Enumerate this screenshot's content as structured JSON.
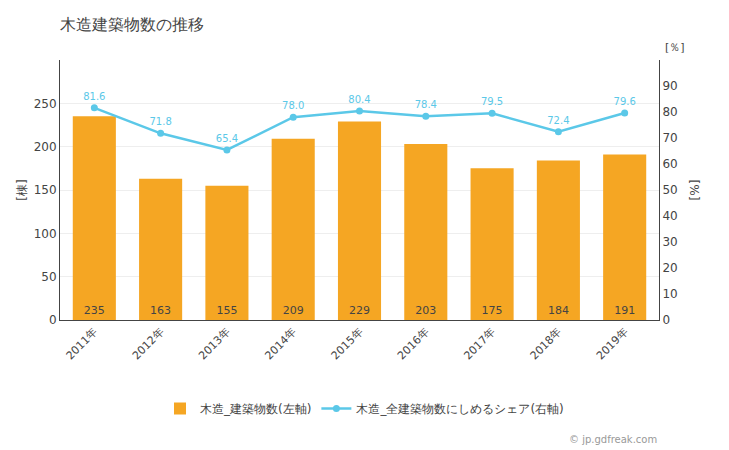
{
  "chart_data": {
    "type": "bar",
    "title": "木造建築物数の推移",
    "categories": [
      "2011年",
      "2012年",
      "2013年",
      "2014年",
      "2015年",
      "2016年",
      "2017年",
      "2018年",
      "2019年"
    ],
    "series": [
      {
        "name": "木造_建築物数(左軸)",
        "type": "bar",
        "color": "#f5a623",
        "values": [
          235,
          163,
          155,
          209,
          229,
          203,
          175,
          184,
          191
        ]
      },
      {
        "name": "木造_全建築物数にしめるシェア(右軸)",
        "type": "line",
        "axis": "y2",
        "color": "#5bc8e8",
        "marker": "circle",
        "values": [
          81.6,
          71.8,
          65.4,
          78.0,
          80.4,
          78.4,
          79.5,
          72.4,
          79.6
        ],
        "value_labels": [
          "81.6",
          "71.8",
          "65.4",
          "78.0",
          "80.4",
          "78.4",
          "79.5",
          "72.4",
          "79.6"
        ]
      }
    ],
    "ylabel": "[棟]",
    "y2label": "[%]",
    "annotations": [
      "[％]",
      "© jp.gdfreak.com"
    ],
    "ylim": [
      0,
      300
    ],
    "yticks": [
      0,
      50,
      100,
      150,
      200,
      250
    ],
    "y2lim": [
      0,
      100
    ],
    "y2ticks": [
      0,
      10,
      20,
      30,
      40,
      50,
      60,
      70,
      80,
      90
    ],
    "grid": true,
    "data_labels": true,
    "legend": "bottom"
  }
}
